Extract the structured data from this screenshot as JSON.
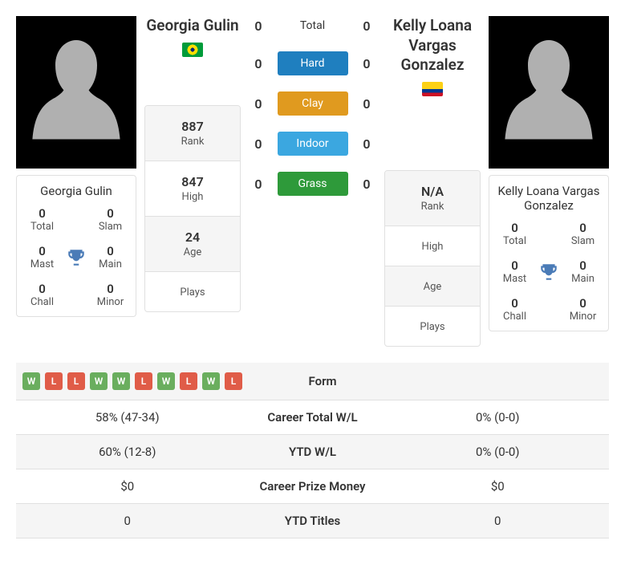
{
  "players": {
    "p1": {
      "name": "Georgia Gulin",
      "flag_colors": {
        "top": "#009b3a",
        "mid": "#fedf00",
        "circle": "#002776"
      },
      "titles": {
        "total": {
          "val": "0",
          "lbl": "Total"
        },
        "slam": {
          "val": "0",
          "lbl": "Slam"
        },
        "mast": {
          "val": "0",
          "lbl": "Mast"
        },
        "main": {
          "val": "0",
          "lbl": "Main"
        },
        "chall": {
          "val": "0",
          "lbl": "Chall"
        },
        "minor": {
          "val": "0",
          "lbl": "Minor"
        }
      },
      "ranks": {
        "rank": {
          "val": "887",
          "lbl": "Rank"
        },
        "high": {
          "val": "847",
          "lbl": "High"
        },
        "age": {
          "val": "24",
          "lbl": "Age"
        },
        "plays": {
          "val": "",
          "lbl": "Plays"
        }
      }
    },
    "p2": {
      "name": "Kelly Loana Vargas Gonzalez",
      "flag_colors": {
        "top": "#fcd116",
        "mid": "#003893",
        "bot": "#ce1126"
      },
      "titles": {
        "total": {
          "val": "0",
          "lbl": "Total"
        },
        "slam": {
          "val": "0",
          "lbl": "Slam"
        },
        "mast": {
          "val": "0",
          "lbl": "Mast"
        },
        "main": {
          "val": "0",
          "lbl": "Main"
        },
        "chall": {
          "val": "0",
          "lbl": "Chall"
        },
        "minor": {
          "val": "0",
          "lbl": "Minor"
        }
      },
      "ranks": {
        "rank": {
          "val": "N/A",
          "lbl": "Rank"
        },
        "high": {
          "val": "",
          "lbl": "High"
        },
        "age": {
          "val": "",
          "lbl": "Age"
        },
        "plays": {
          "val": "",
          "lbl": "Plays"
        }
      }
    }
  },
  "surfaces": [
    {
      "label": "Total",
      "p1": "0",
      "p2": "0",
      "color": "",
      "plain": true
    },
    {
      "label": "Hard",
      "p1": "0",
      "p2": "0",
      "color": "#1f7fbf"
    },
    {
      "label": "Clay",
      "p1": "0",
      "p2": "0",
      "color": "#e09a1f"
    },
    {
      "label": "Indoor",
      "p1": "0",
      "p2": "0",
      "color": "#3ba7e0"
    },
    {
      "label": "Grass",
      "p1": "0",
      "p2": "0",
      "color": "#2e9a3a"
    }
  ],
  "form": {
    "p1": [
      "W",
      "L",
      "L",
      "W",
      "W",
      "L",
      "W",
      "L",
      "W",
      "L"
    ],
    "p2": []
  },
  "comparison": [
    {
      "label": "Form",
      "p1_form": true,
      "p2_form": true
    },
    {
      "label": "Career Total W/L",
      "p1": "58% (47-34)",
      "p2": "0% (0-0)"
    },
    {
      "label": "YTD W/L",
      "p1": "60% (12-8)",
      "p2": "0% (0-0)"
    },
    {
      "label": "Career Prize Money",
      "p1": "$0",
      "p2": "$0"
    },
    {
      "label": "YTD Titles",
      "p1": "0",
      "p2": "0"
    }
  ],
  "trophy_color": "#4a7bb7",
  "avatar_fill": "#b0b0b0"
}
